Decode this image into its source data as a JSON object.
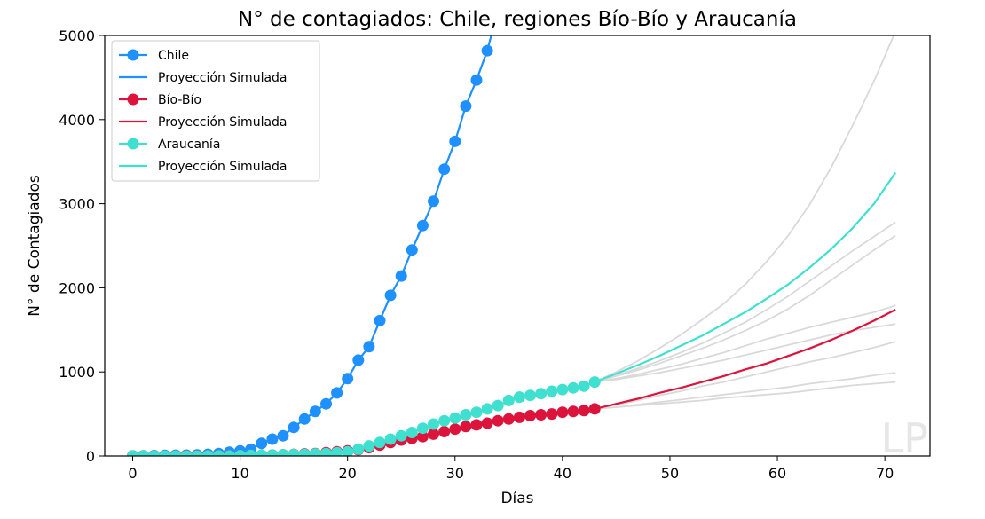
{
  "chart_data": {
    "type": "line",
    "title": "N° de contagiados: Chile, regiones Bío-Bío y Araucanía",
    "xlabel": "Días",
    "ylabel": "N° de Contagiados",
    "xlim": [
      -2.6,
      74.2
    ],
    "ylim": [
      0,
      5000
    ],
    "x_ticks": [
      0,
      10,
      20,
      30,
      40,
      50,
      60,
      70
    ],
    "y_ticks": [
      0,
      1000,
      2000,
      3000,
      4000,
      5000
    ],
    "grid": false,
    "legend_position": "top-left",
    "watermark": "LP",
    "series": [
      {
        "name": "Chile",
        "color": "#1e90ff",
        "marker": true,
        "x": [
          0,
          1,
          2,
          3,
          4,
          5,
          6,
          7,
          8,
          9,
          10,
          11,
          12,
          13,
          14,
          15,
          16,
          17,
          18,
          19,
          20,
          21,
          22,
          23,
          24,
          25,
          26,
          27,
          28,
          29,
          30,
          31,
          32,
          33
        ],
        "y": [
          1,
          3,
          5,
          7,
          9,
          11,
          14,
          20,
          30,
          45,
          60,
          80,
          150,
          200,
          240,
          340,
          440,
          530,
          620,
          750,
          920,
          1140,
          1300,
          1610,
          1910,
          2140,
          2450,
          2740,
          3030,
          3410,
          3740,
          4160,
          4470,
          4820
        ]
      },
      {
        "name": "Proyección Simulada",
        "color": "#1e90ff",
        "marker": false,
        "x": [
          33,
          34
        ],
        "y": [
          4820,
          5300
        ]
      },
      {
        "name": "Bío-Bío",
        "color": "#dc143c",
        "marker": true,
        "x": [
          0,
          1,
          2,
          3,
          4,
          5,
          6,
          7,
          8,
          9,
          10,
          11,
          12,
          13,
          14,
          15,
          16,
          17,
          18,
          19,
          20,
          21,
          22,
          23,
          24,
          25,
          26,
          27,
          28,
          29,
          30,
          31,
          32,
          33,
          34,
          35,
          36,
          37,
          38,
          39,
          40,
          41,
          42,
          43
        ],
        "y": [
          0,
          0,
          0,
          0,
          1,
          2,
          2,
          3,
          4,
          5,
          6,
          8,
          10,
          12,
          15,
          20,
          25,
          30,
          40,
          50,
          60,
          75,
          100,
          130,
          160,
          190,
          210,
          230,
          260,
          290,
          320,
          350,
          370,
          390,
          420,
          440,
          460,
          480,
          490,
          500,
          520,
          530,
          540,
          560
        ]
      },
      {
        "name": "Proyección Simulada",
        "color": "#dc143c",
        "marker": false,
        "x": [
          43,
          45,
          47,
          49,
          51,
          53,
          55,
          57,
          59,
          61,
          63,
          65,
          67,
          69,
          71
        ],
        "y": [
          560,
          620,
          680,
          750,
          810,
          880,
          950,
          1030,
          1100,
          1190,
          1280,
          1380,
          1490,
          1610,
          1740
        ]
      },
      {
        "name": "Araucanía",
        "color": "#40e0d0",
        "marker": true,
        "x": [
          0,
          1,
          2,
          3,
          4,
          5,
          6,
          7,
          8,
          9,
          10,
          11,
          12,
          13,
          14,
          15,
          16,
          17,
          18,
          19,
          20,
          21,
          22,
          23,
          24,
          25,
          26,
          27,
          28,
          29,
          30,
          31,
          32,
          33,
          34,
          35,
          36,
          37,
          38,
          39,
          40,
          41,
          42,
          43
        ],
        "y": [
          0,
          0,
          0,
          0,
          0,
          0,
          0,
          1,
          2,
          3,
          5,
          8,
          10,
          12,
          15,
          18,
          20,
          25,
          30,
          40,
          50,
          80,
          120,
          160,
          200,
          240,
          280,
          330,
          380,
          420,
          450,
          490,
          520,
          560,
          600,
          660,
          700,
          720,
          740,
          770,
          790,
          810,
          830,
          880
        ]
      },
      {
        "name": "Proyección Simulada",
        "color": "#40e0d0",
        "marker": false,
        "x": [
          43,
          45,
          47,
          49,
          51,
          53,
          55,
          57,
          59,
          61,
          63,
          65,
          67,
          69,
          71
        ],
        "y": [
          880,
          980,
          1080,
          1190,
          1310,
          1430,
          1570,
          1710,
          1870,
          2040,
          2240,
          2460,
          2710,
          3000,
          3370
        ]
      }
    ],
    "background_curves": {
      "color": "#d9d9d9",
      "x": [
        43,
        45,
        47,
        49,
        51,
        53,
        55,
        57,
        59,
        61,
        63,
        65,
        67,
        69,
        71
      ],
      "curves": [
        [
          880,
          1000,
          1130,
          1280,
          1440,
          1620,
          1810,
          2040,
          2310,
          2620,
          2990,
          3430,
          3930,
          4460,
          5050
        ],
        [
          880,
          960,
          1040,
          1130,
          1230,
          1340,
          1460,
          1590,
          1740,
          1900,
          2080,
          2260,
          2440,
          2610,
          2780
        ],
        [
          880,
          950,
          1020,
          1100,
          1190,
          1280,
          1380,
          1490,
          1610,
          1750,
          1910,
          2090,
          2270,
          2450,
          2620
        ],
        [
          880,
          920,
          970,
          1030,
          1090,
          1160,
          1230,
          1310,
          1390,
          1460,
          1530,
          1590,
          1650,
          1710,
          1790
        ],
        [
          880,
          910,
          950,
          990,
          1040,
          1090,
          1140,
          1200,
          1260,
          1320,
          1380,
          1440,
          1490,
          1530,
          1570
        ],
        [
          560,
          610,
          660,
          720,
          770,
          830,
          880,
          940,
          1000,
          1060,
          1120,
          1170,
          1230,
          1290,
          1360
        ],
        [
          560,
          580,
          610,
          640,
          670,
          700,
          730,
          760,
          790,
          820,
          860,
          890,
          920,
          960,
          990
        ],
        [
          560,
          580,
          600,
          620,
          640,
          660,
          690,
          710,
          730,
          750,
          780,
          810,
          840,
          860,
          880
        ]
      ]
    },
    "legend": [
      {
        "label": "Chile",
        "color": "#1e90ff",
        "marker": true
      },
      {
        "label": "Proyección Simulada",
        "color": "#1e90ff",
        "marker": false
      },
      {
        "label": "Bío-Bío",
        "color": "#dc143c",
        "marker": true
      },
      {
        "label": "Proyección Simulada",
        "color": "#dc143c",
        "marker": false
      },
      {
        "label": "Araucanía",
        "color": "#40e0d0",
        "marker": true
      },
      {
        "label": "Proyección Simulada",
        "color": "#40e0d0",
        "marker": false
      }
    ]
  }
}
